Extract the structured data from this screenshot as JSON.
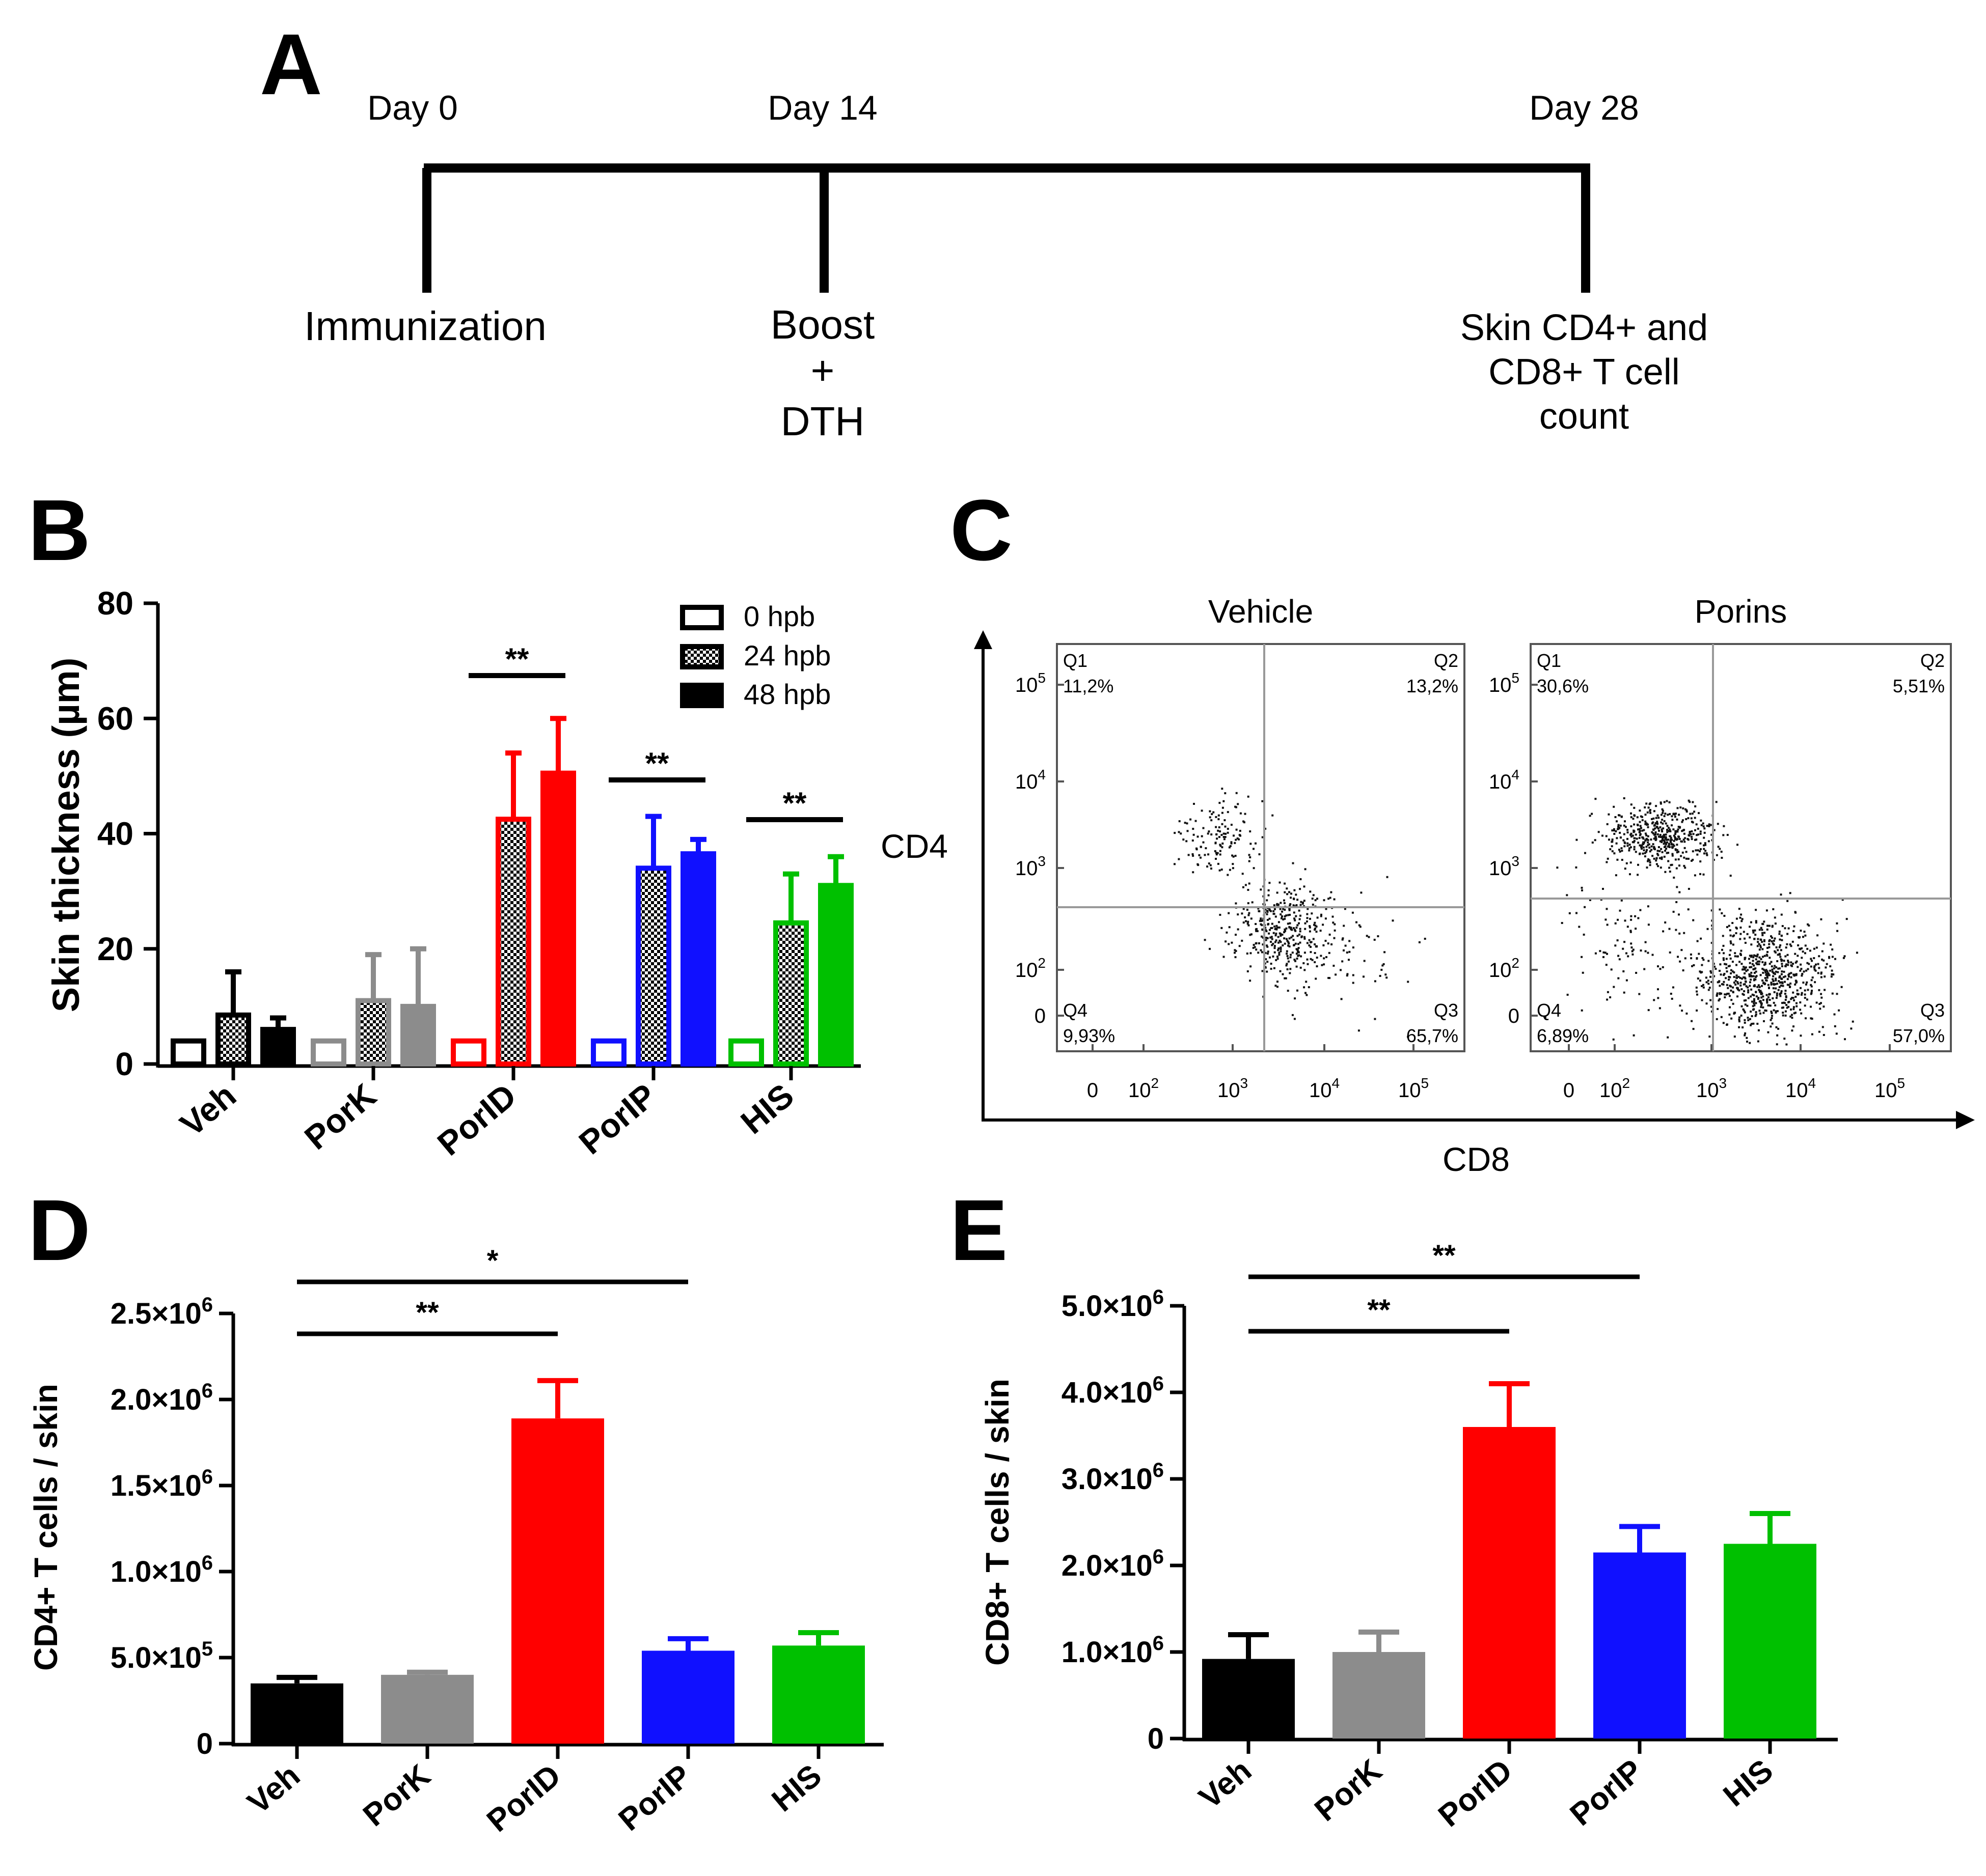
{
  "colors": {
    "Veh": "#000000",
    "PorK": "#8c8c8c",
    "PorID": "#ff0000",
    "PorIP": "#1010ff",
    "HIS": "#00c000"
  },
  "panels": {
    "A": "A",
    "B": "B",
    "C": "C",
    "D": "D",
    "E": "E"
  },
  "timeline": {
    "days": [
      "Day 0",
      "Day 14",
      "Day 28"
    ],
    "events": [
      [
        "Immunization"
      ],
      [
        "Boost",
        "+",
        "DTH"
      ],
      [
        "Skin CD4+ and",
        "CD8+ T cell",
        "count"
      ]
    ]
  },
  "flow": {
    "x_axis": "CD8",
    "y_axis": "CD4",
    "ticks_y": [
      "10^5",
      "10^4",
      "10^3",
      "10^2",
      "0"
    ],
    "ticks_x": [
      "0",
      "10^2",
      "10^3",
      "10^4",
      "10^5"
    ],
    "plots": [
      {
        "title": "Vehicle",
        "quadrants": {
          "Q1": [
            "Q1",
            "11,2%"
          ],
          "Q2": [
            "Q2",
            "13,2%"
          ],
          "Q3": [
            "Q3",
            "65,7%"
          ],
          "Q4": [
            "Q4",
            "9,93%"
          ]
        }
      },
      {
        "title": "Porins",
        "quadrants": {
          "Q1": [
            "Q1",
            "30,6%"
          ],
          "Q2": [
            "Q2",
            "5,51%"
          ],
          "Q3": [
            "Q3",
            "57,0%"
          ],
          "Q4": [
            "Q4",
            "6,89%"
          ]
        }
      }
    ]
  },
  "chart_data": [
    {
      "id": "B",
      "type": "bar",
      "ylabel": "Skin thickness (µm)",
      "ylim": [
        0,
        80
      ],
      "yticks": [
        "0",
        "20",
        "40",
        "60",
        "80"
      ],
      "categories": [
        "Veh",
        "PorK",
        "PorID",
        "PorIP",
        "HIS"
      ],
      "legend": [
        "0 hpb",
        "24 hpb",
        "48 hpb"
      ],
      "series": [
        {
          "name": "0 hpb",
          "values": [
            4,
            4,
            4,
            4,
            4
          ],
          "errors": [
            0,
            0,
            0,
            0,
            0
          ]
        },
        {
          "name": "24 hpb",
          "values": [
            8.5,
            11,
            42.5,
            34,
            24.5
          ],
          "errors": [
            7.5,
            8,
            11.5,
            9,
            8.5
          ]
        },
        {
          "name": "48 hpb",
          "values": [
            6,
            10,
            50.5,
            36.5,
            31
          ],
          "errors": [
            2,
            10,
            9.5,
            2.5,
            5
          ]
        }
      ],
      "significance": [
        {
          "label": "**",
          "category": "PorID"
        },
        {
          "label": "**",
          "category": "PorIP"
        },
        {
          "label": "**",
          "category": "HIS"
        }
      ]
    },
    {
      "id": "D",
      "type": "bar",
      "ylabel": "CD4+ T cells / skin",
      "ylim": [
        0,
        2500000
      ],
      "yticks": [
        [
          "0",
          ""
        ],
        [
          "5.0×10",
          "5"
        ],
        [
          "1.0×10",
          "6"
        ],
        [
          "1.5×10",
          "6"
        ],
        [
          "2.0×10",
          "6"
        ],
        [
          "2.5×10",
          "6"
        ]
      ],
      "categories": [
        "Veh",
        "PorK",
        "PorID",
        "PorIP",
        "HIS"
      ],
      "values": [
        350000,
        400000,
        1890000,
        540000,
        570000
      ],
      "errors": [
        35000,
        15000,
        220000,
        70000,
        75000
      ],
      "significance": [
        {
          "label": "*",
          "from": "Veh",
          "to": "PorIP"
        },
        {
          "label": "**",
          "from": "Veh",
          "to": "PorID"
        }
      ]
    },
    {
      "id": "E",
      "type": "bar",
      "ylabel": "CD8+ T cells / skin",
      "ylim": [
        0,
        5000000
      ],
      "yticks": [
        [
          "0",
          ""
        ],
        [
          "1.0×10",
          "6"
        ],
        [
          "2.0×10",
          "6"
        ],
        [
          "3.0×10",
          "6"
        ],
        [
          "4.0×10",
          "6"
        ],
        [
          "5.0×10",
          "6"
        ]
      ],
      "categories": [
        "Veh",
        "PorK",
        "PorID",
        "PorIP",
        "HIS"
      ],
      "values": [
        920000,
        1000000,
        3600000,
        2150000,
        2250000
      ],
      "errors": [
        280000,
        230000,
        500000,
        300000,
        350000
      ],
      "significance": [
        {
          "label": "**",
          "from": "Veh",
          "to": "PorIP"
        },
        {
          "label": "**",
          "from": "Veh",
          "to": "PorID"
        }
      ]
    }
  ]
}
